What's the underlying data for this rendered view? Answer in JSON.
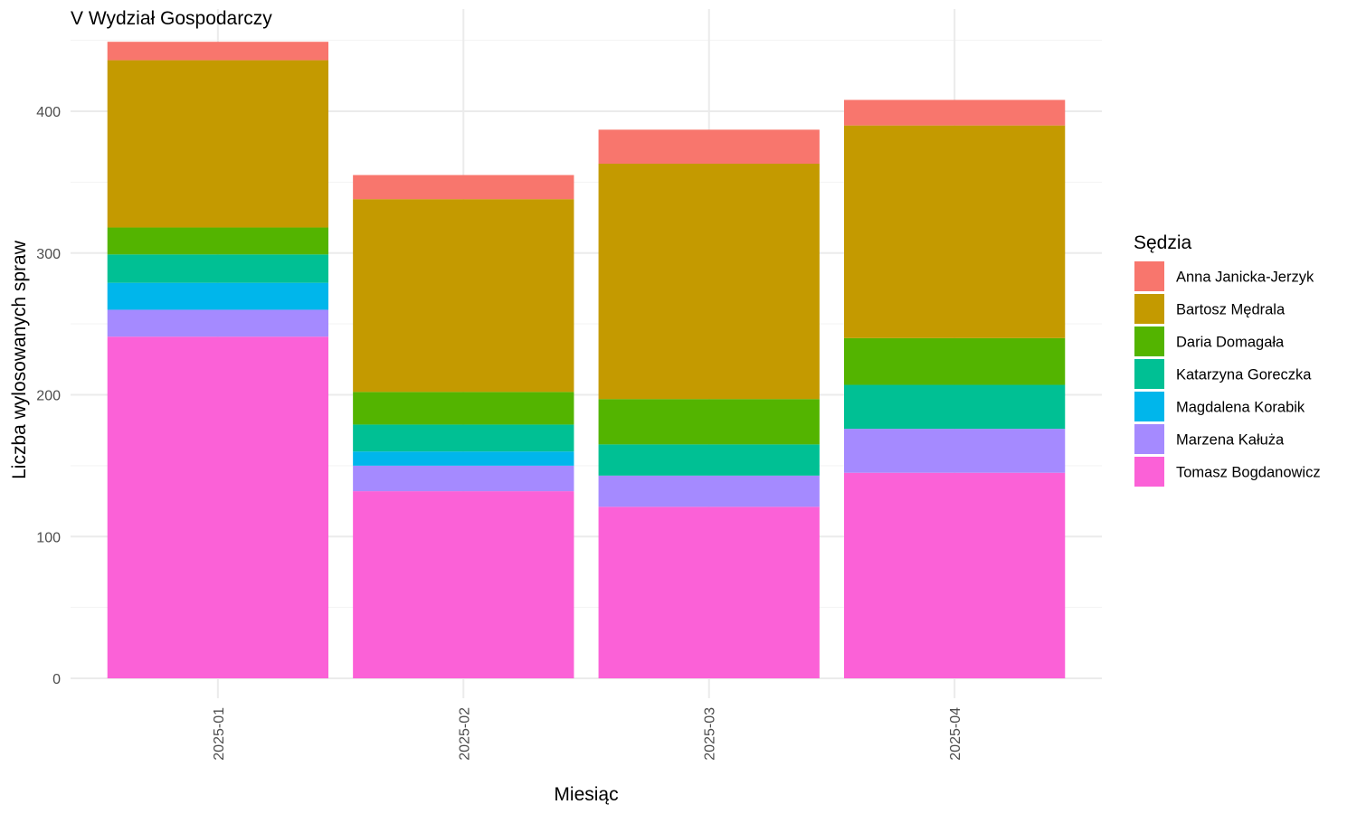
{
  "chart_data": {
    "type": "bar",
    "stacked": true,
    "title": "V Wydział Gospodarczy",
    "xlabel": "Miesiąc",
    "ylabel": "Liczba wylosowanych spraw",
    "ylim": [
      0,
      470
    ],
    "yticks": [
      0,
      100,
      200,
      300,
      400
    ],
    "grid": true,
    "legend_title": "Sędzia",
    "legend_position": "right",
    "categories": [
      "2025-01",
      "2025-02",
      "2025-03",
      "2025-04"
    ],
    "series": [
      {
        "name": "Tomasz Bogdanowicz",
        "color": "#FB61D7",
        "values": [
          241,
          132,
          121,
          145
        ]
      },
      {
        "name": "Marzena Kałuża",
        "color": "#A58AFF",
        "values": [
          19,
          18,
          22,
          31
        ]
      },
      {
        "name": "Magdalena Korabik",
        "color": "#00B6EB",
        "values": [
          19,
          10,
          0,
          0
        ]
      },
      {
        "name": "Katarzyna Goreczka",
        "color": "#00C094",
        "values": [
          20,
          19,
          22,
          31
        ]
      },
      {
        "name": "Daria Domagała",
        "color": "#53B400",
        "values": [
          19,
          23,
          32,
          33
        ]
      },
      {
        "name": "Bartosz Mędrala",
        "color": "#C49A00",
        "values": [
          118,
          136,
          166,
          150
        ]
      },
      {
        "name": "Anna Janicka-Jerzyk",
        "color": "#F8766D",
        "values": [
          13,
          17,
          24,
          18
        ]
      }
    ],
    "legend_order": [
      "Anna Janicka-Jerzyk",
      "Bartosz Mędrala",
      "Daria Domagała",
      "Katarzyna Goreczka",
      "Magdalena Korabik",
      "Marzena Kałuża",
      "Tomasz Bogdanowicz"
    ]
  }
}
